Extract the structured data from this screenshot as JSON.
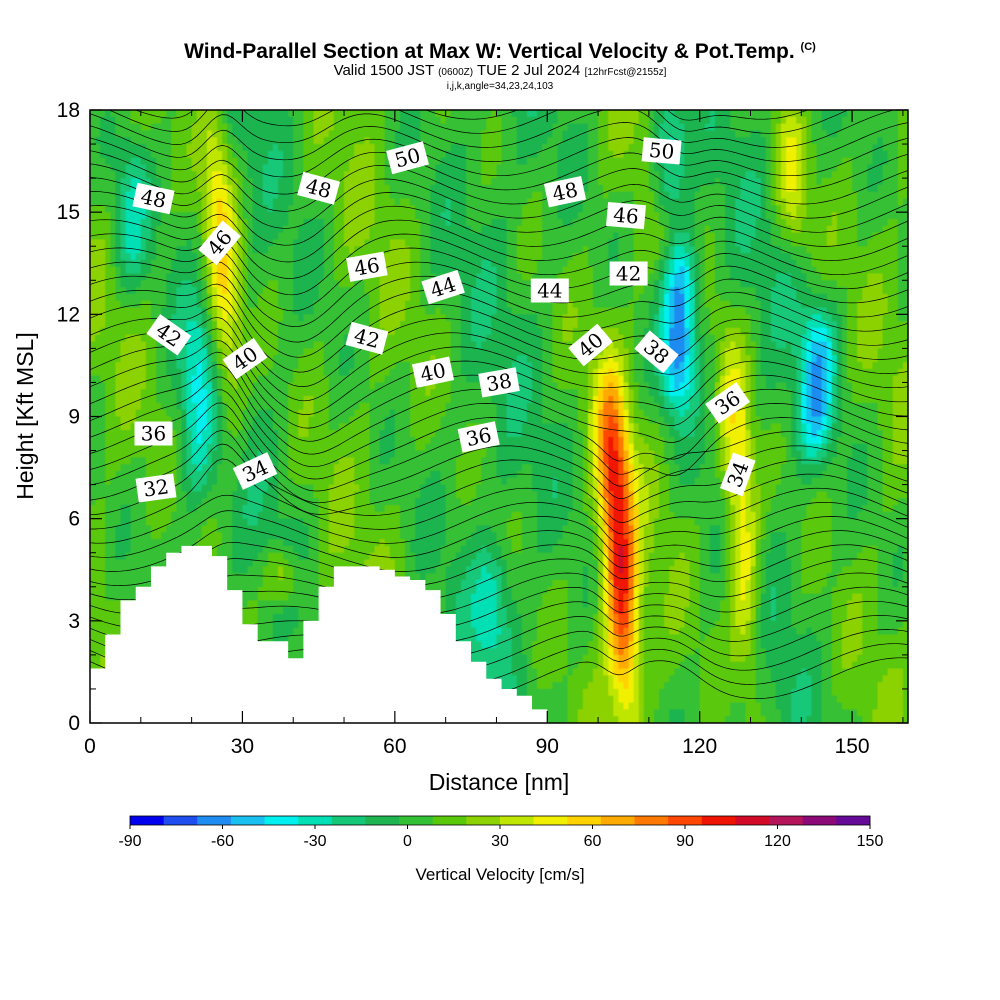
{
  "header": {
    "title": "Wind-Parallel Section at Max W: Vertical Velocity & Pot.Temp.",
    "copyright": "(C)",
    "valid_main": "Valid 1500 JST",
    "valid_utc": "(0600Z)",
    "valid_date": "TUE 2 Jul 2024",
    "forecast": "[12hrFcst@2155z]",
    "grid_info": "i,j,k,angle=34,23,24,103"
  },
  "chart_data": {
    "type": "heatmap",
    "xlabel": "Distance [nm]",
    "ylabel": "Height [Kft MSL]",
    "xlim": [
      0,
      161
    ],
    "ylim": [
      0,
      18
    ],
    "x_ticks": [
      0,
      30,
      60,
      90,
      120,
      150
    ],
    "y_ticks": [
      0,
      3,
      6,
      9,
      12,
      15,
      18
    ],
    "colorbar": {
      "title": "Vertical Velocity [cm/s]",
      "range": [
        -90,
        150
      ],
      "ticks": [
        -90,
        -60,
        -30,
        0,
        30,
        60,
        90,
        120,
        150
      ],
      "colors": [
        "#0000ee",
        "#1e4df0",
        "#1e8cf0",
        "#19c0f0",
        "#00f0f0",
        "#00e0b4",
        "#14c878",
        "#1eb450",
        "#34c034",
        "#5ac80a",
        "#8cd200",
        "#bee600",
        "#f0f000",
        "#ffd200",
        "#ffaa00",
        "#ff7800",
        "#ff4600",
        "#f01400",
        "#d20a28",
        "#b4145a",
        "#8c0a78",
        "#640a96"
      ]
    },
    "field_features": [
      {
        "kind": "updraft",
        "x": 104,
        "y_range": [
          0.8,
          9.6
        ],
        "peak_w": 95
      },
      {
        "kind": "updraft",
        "x": 128,
        "y_range": [
          2,
          10.5
        ],
        "peak_w": 55
      },
      {
        "kind": "updraft",
        "x": 26,
        "y_range": [
          9,
          18
        ],
        "peak_w": 50
      },
      {
        "kind": "updraft",
        "x": 38,
        "y_range": [
          3.5,
          5
        ],
        "peak_w": 30
      },
      {
        "kind": "updraft",
        "x": 138,
        "y_range": [
          14,
          18
        ],
        "peak_w": 35
      },
      {
        "kind": "downdraft",
        "x": 116,
        "y_range": [
          9.5,
          14
        ],
        "peak_w": -75
      },
      {
        "kind": "downdraft",
        "x": 114,
        "y_range": [
          15,
          18
        ],
        "peak_w": -45
      },
      {
        "kind": "downdraft",
        "x": 143,
        "y_range": [
          8,
          12
        ],
        "peak_w": -50
      },
      {
        "kind": "downdraft",
        "x": 79,
        "y_range": [
          2,
          5
        ],
        "peak_w": -30
      },
      {
        "kind": "downdraft",
        "x": 21,
        "y_range": [
          7,
          12
        ],
        "peak_w": -35
      },
      {
        "kind": "downdraft",
        "x": 8,
        "y_range": [
          13,
          17
        ],
        "peak_w": -30
      }
    ],
    "terrain": {
      "x": [
        0,
        3,
        6,
        9,
        12,
        15,
        18,
        21,
        24,
        27,
        30,
        33,
        36,
        39,
        42,
        45,
        48,
        51,
        54,
        57,
        60,
        63,
        66,
        69,
        72,
        75,
        78,
        81,
        84,
        87,
        90
      ],
      "height": [
        1.6,
        2.6,
        3.6,
        4.0,
        4.6,
        5.0,
        5.2,
        5.2,
        4.9,
        3.9,
        2.9,
        2.4,
        2.4,
        1.9,
        3.0,
        4.0,
        4.6,
        4.6,
        4.6,
        4.5,
        4.3,
        4.2,
        3.9,
        3.2,
        2.4,
        1.8,
        1.3,
        1.0,
        0.8,
        0.4,
        0
      ]
    },
    "theta_contours": {
      "levels": [
        32,
        34,
        36,
        38,
        40,
        42,
        44,
        46,
        48,
        50
      ],
      "labels": [
        {
          "value": "50",
          "x": 62.5,
          "y": 16.6,
          "angle": -15
        },
        {
          "value": "50",
          "x": 112.5,
          "y": 16.8,
          "angle": 5
        },
        {
          "value": "48",
          "x": 12.5,
          "y": 15.4,
          "angle": 12
        },
        {
          "value": "48",
          "x": 45,
          "y": 15.7,
          "angle": 15
        },
        {
          "value": "48",
          "x": 93.5,
          "y": 15.6,
          "angle": -12
        },
        {
          "value": "46",
          "x": 25.5,
          "y": 14.1,
          "angle": -50
        },
        {
          "value": "46",
          "x": 54.5,
          "y": 13.4,
          "angle": -10
        },
        {
          "value": "46",
          "x": 105.5,
          "y": 14.9,
          "angle": 5
        },
        {
          "value": "44",
          "x": 69.5,
          "y": 12.8,
          "angle": -18
        },
        {
          "value": "44",
          "x": 90.5,
          "y": 12.7,
          "angle": 0
        },
        {
          "value": "42",
          "x": 15.5,
          "y": 11.4,
          "angle": 35
        },
        {
          "value": "42",
          "x": 54.5,
          "y": 11.3,
          "angle": 15
        },
        {
          "value": "42",
          "x": 106,
          "y": 13.2,
          "angle": 0
        },
        {
          "value": "40",
          "x": 30.5,
          "y": 10.7,
          "angle": -35
        },
        {
          "value": "40",
          "x": 67.5,
          "y": 10.3,
          "angle": -12
        },
        {
          "value": "40",
          "x": 98.5,
          "y": 11.1,
          "angle": -40
        },
        {
          "value": "38",
          "x": 80.5,
          "y": 10.0,
          "angle": -10
        },
        {
          "value": "38",
          "x": 111.5,
          "y": 10.9,
          "angle": 40
        },
        {
          "value": "36",
          "x": 12.5,
          "y": 8.5,
          "angle": 0
        },
        {
          "value": "36",
          "x": 76.5,
          "y": 8.4,
          "angle": -12
        },
        {
          "value": "36",
          "x": 125.5,
          "y": 9.4,
          "angle": -35
        },
        {
          "value": "34",
          "x": 32.5,
          "y": 7.4,
          "angle": -25
        },
        {
          "value": "34",
          "x": 127.5,
          "y": 7.3,
          "angle": -70
        },
        {
          "value": "32",
          "x": 13,
          "y": 6.9,
          "angle": -8
        }
      ]
    }
  }
}
